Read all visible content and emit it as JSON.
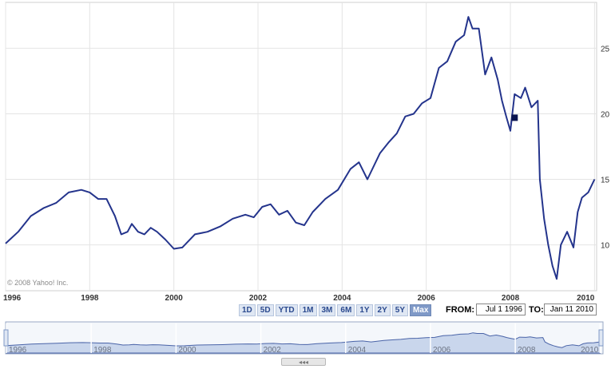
{
  "chart_data": {
    "type": "line",
    "title": "",
    "xlabel": "",
    "ylabel": "",
    "xlim": [
      1996.0,
      2010.05
    ],
    "ylim": [
      6.5,
      28.5
    ],
    "y_ticks": [
      10,
      15,
      20,
      25
    ],
    "x_ticks": [
      1996,
      1998,
      2000,
      2002,
      2004,
      2006,
      2008,
      2010
    ],
    "grid": true,
    "legend": "none",
    "series": [
      {
        "color": "#24348c",
        "x": [
          1996.0,
          1996.3,
          1996.6,
          1996.9,
          1997.2,
          1997.5,
          1997.8,
          1998.0,
          1998.2,
          1998.4,
          1998.6,
          1998.75,
          1998.9,
          1999.0,
          1999.15,
          1999.3,
          1999.45,
          1999.6,
          1999.8,
          2000.0,
          2000.2,
          2000.5,
          2000.8,
          2001.1,
          2001.4,
          2001.7,
          2001.9,
          2002.1,
          2002.3,
          2002.5,
          2002.7,
          2002.9,
          2003.1,
          2003.3,
          2003.6,
          2003.9,
          2004.2,
          2004.4,
          2004.6,
          2004.9,
          2005.1,
          2005.3,
          2005.5,
          2005.7,
          2005.9,
          2006.1,
          2006.3,
          2006.5,
          2006.7,
          2006.9,
          2007.0,
          2007.1,
          2007.25,
          2007.4,
          2007.55,
          2007.7,
          2007.8,
          2007.9,
          2008.0,
          2008.1,
          2008.25,
          2008.35,
          2008.5,
          2008.65,
          2008.7,
          2008.8,
          2008.9,
          2009.0,
          2009.1,
          2009.2,
          2009.35,
          2009.5,
          2009.6,
          2009.7,
          2009.85,
          2010.0
        ],
        "y": [
          10.1,
          11.0,
          12.2,
          12.8,
          13.2,
          14.0,
          14.2,
          14.0,
          13.5,
          13.5,
          12.2,
          10.8,
          11.0,
          11.6,
          11.0,
          10.8,
          11.3,
          11.0,
          10.4,
          9.7,
          9.8,
          10.8,
          11.0,
          11.4,
          12.0,
          12.3,
          12.1,
          12.9,
          13.1,
          12.3,
          12.6,
          11.7,
          11.5,
          12.5,
          13.5,
          14.2,
          15.8,
          16.3,
          15.0,
          17.0,
          17.8,
          18.5,
          19.8,
          20.0,
          20.8,
          21.2,
          23.5,
          24.0,
          25.5,
          26.0,
          27.4,
          26.5,
          26.5,
          23.0,
          24.3,
          22.6,
          21.0,
          19.8,
          18.7,
          21.5,
          21.2,
          22.0,
          20.5,
          21.0,
          15.0,
          12.0,
          10.0,
          8.4,
          7.4,
          10.0,
          11.0,
          9.8,
          12.5,
          13.6,
          14.0,
          15.0
        ]
      }
    ],
    "navigator": {
      "x_ticks": [
        1996,
        1998,
        2000,
        2002,
        2004,
        2006,
        2008,
        2010
      ]
    }
  },
  "watermark": "© 2008 Yahoo! Inc.",
  "toolbar": {
    "ranges": [
      "1D",
      "5D",
      "YTD",
      "1M",
      "3M",
      "6M",
      "1Y",
      "2Y",
      "5Y",
      "Max"
    ],
    "active": "Max",
    "from_label": "FROM:",
    "from_value": "Jul 1 1996",
    "to_label": "TO:",
    "to_value": "Jan 11 2010"
  },
  "grip_label": "◂◂◂"
}
